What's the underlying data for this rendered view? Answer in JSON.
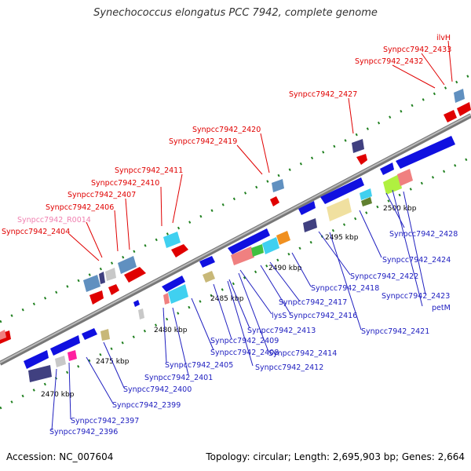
{
  "title": "Synechococcus elongatus PCC 7942, complete genome",
  "footer": {
    "accession": "Accession: NC_007604",
    "stats": "Topology: circular; Length: 2,695,903 bp; Genes: 2,664"
  },
  "colors": {
    "forward_label": "#e00000",
    "reverse_label": "#2020c0",
    "rna_label": "#f080b0",
    "backbone": "#999999",
    "tick": "#208020"
  },
  "scale_labels": [
    "2470 kbp",
    "2475 kbp",
    "2480 kbp",
    "2485 kbp",
    "2490 kbp",
    "2495 kbp",
    "2500 kbp"
  ],
  "top_labels": [
    {
      "text": "ilvH",
      "color": "#e00000"
    },
    {
      "text": "Synpcc7942_2433",
      "color": "#e00000"
    },
    {
      "text": "Synpcc7942_2432",
      "color": "#e00000"
    },
    {
      "text": "Synpcc7942_2427",
      "color": "#e00000"
    },
    {
      "text": "Synpcc7942_2420",
      "color": "#e00000"
    },
    {
      "text": "Synpcc7942_2419",
      "color": "#e00000"
    },
    {
      "text": "Synpcc7942_2411",
      "color": "#e00000"
    },
    {
      "text": "Synpcc7942_2410",
      "color": "#e00000"
    },
    {
      "text": "Synpcc7942_2407",
      "color": "#e00000"
    },
    {
      "text": "Synpcc7942_2406",
      "color": "#e00000"
    },
    {
      "text": "Synpcc7942_R0014",
      "color": "#f080b0"
    },
    {
      "text": "Synpcc7942_2404",
      "color": "#e00000"
    }
  ],
  "bottom_labels": [
    "Synpcc7942_2428",
    "Synpcc7942_2424",
    "Synpcc7942_2422",
    "Synpcc7942_2418",
    "Synpcc7942_2423",
    "petM",
    "Synpcc7942_2417",
    "Synpcc7942_2416",
    "Synpcc7942_2421",
    "lysS",
    "Synpcc7942_2413",
    "Synpcc7942_2409",
    "Synpcc7942_2414",
    "Synpcc7942_2408",
    "Synpcc7942_2412",
    "Synpcc7942_2405",
    "Synpcc7942_2401",
    "Synpcc7942_2400",
    "Synpcc7942_2399",
    "Synpcc7942_2397",
    "Synpcc7942_2396"
  ]
}
